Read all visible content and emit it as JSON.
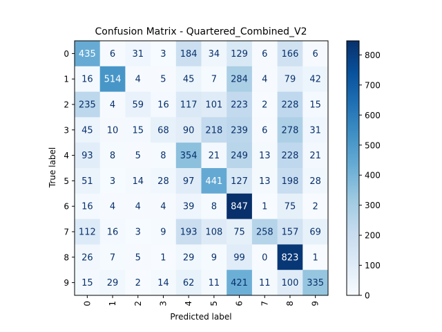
{
  "chart_data": {
    "type": "heatmap",
    "title": "Confusion Matrix - Quartered_Combined_V2",
    "xlabel": "Predicted label",
    "ylabel": "True label",
    "x_categories": [
      "0",
      "1",
      "2",
      "3",
      "4",
      "5",
      "6",
      "7",
      "8",
      "9"
    ],
    "y_categories": [
      "0",
      "1",
      "2",
      "3",
      "4",
      "5",
      "6",
      "7",
      "8",
      "9"
    ],
    "matrix": [
      [
        435,
        6,
        31,
        3,
        184,
        34,
        129,
        6,
        166,
        6
      ],
      [
        16,
        514,
        4,
        5,
        45,
        7,
        284,
        4,
        79,
        42
      ],
      [
        235,
        4,
        59,
        16,
        117,
        101,
        223,
        2,
        228,
        15
      ],
      [
        45,
        10,
        15,
        68,
        90,
        218,
        239,
        6,
        278,
        31
      ],
      [
        93,
        8,
        5,
        8,
        354,
        21,
        249,
        13,
        228,
        21
      ],
      [
        51,
        3,
        14,
        28,
        97,
        441,
        127,
        13,
        198,
        28
      ],
      [
        16,
        4,
        4,
        4,
        39,
        8,
        847,
        1,
        75,
        2
      ],
      [
        112,
        16,
        3,
        9,
        193,
        108,
        75,
        258,
        157,
        69
      ],
      [
        26,
        7,
        5,
        1,
        29,
        9,
        99,
        0,
        823,
        1
      ],
      [
        15,
        29,
        2,
        14,
        62,
        11,
        421,
        11,
        100,
        335
      ]
    ],
    "colormap": "Blues",
    "value_range": [
      0,
      847
    ],
    "colorbar_ticks": [
      0,
      100,
      200,
      300,
      400,
      500,
      600,
      700,
      800
    ]
  }
}
